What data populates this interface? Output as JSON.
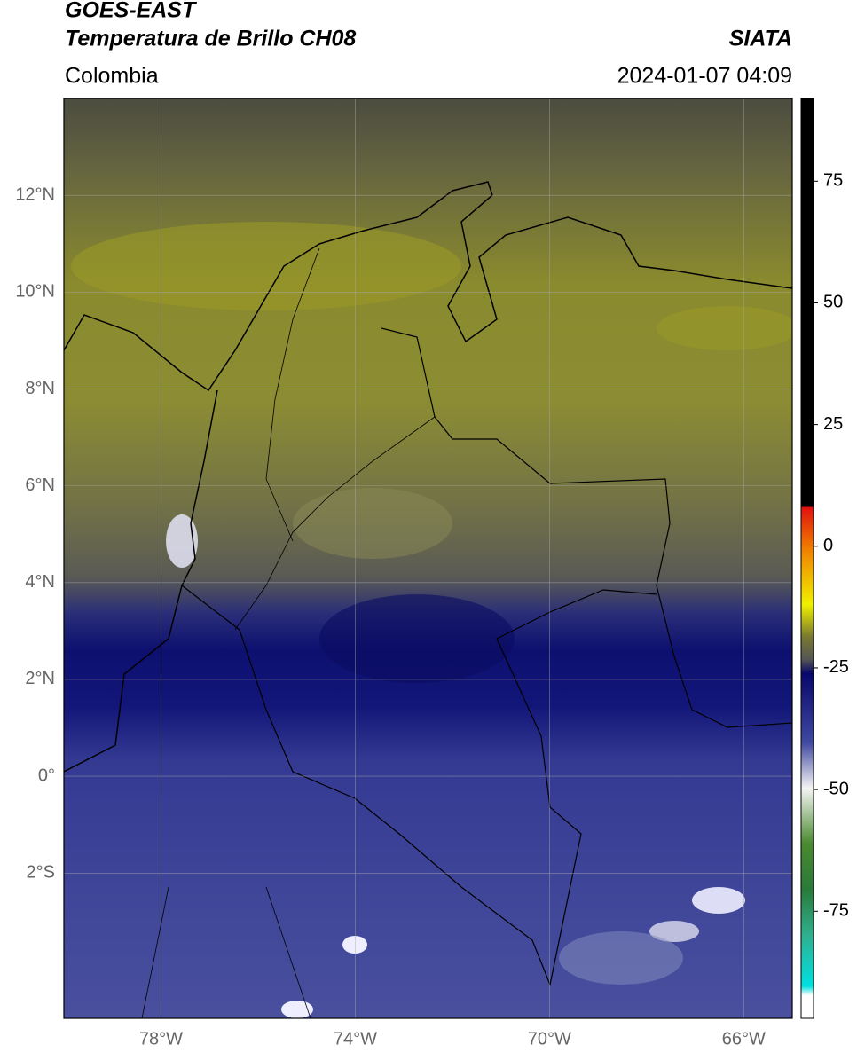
{
  "header": {
    "title": "GOES-EAST",
    "subtitle": "Temperatura de Brillo CH08",
    "source": "SIATA",
    "region": "Colombia",
    "datetime": "2024-01-07 04:09"
  },
  "map": {
    "lonlim": [
      -80,
      -65
    ],
    "latlim": [
      -5,
      14
    ],
    "lon_ticks": [
      {
        "value": -78,
        "label": "78°W"
      },
      {
        "value": -74,
        "label": "74°W"
      },
      {
        "value": -70,
        "label": "70°W"
      },
      {
        "value": -66,
        "label": "66°W"
      }
    ],
    "lat_ticks": [
      {
        "value": 12,
        "label": "12°N"
      },
      {
        "value": 10,
        "label": "10°N"
      },
      {
        "value": 8,
        "label": "8°N"
      },
      {
        "value": 6,
        "label": "6°N"
      },
      {
        "value": 4,
        "label": "4°N"
      },
      {
        "value": 2,
        "label": "2°N"
      },
      {
        "value": 0,
        "label": "0°"
      },
      {
        "value": -2,
        "label": "2°S"
      }
    ]
  },
  "colorbar": {
    "lim": [
      -97,
      92
    ],
    "ticks": [
      75,
      50,
      25,
      0,
      -25,
      -50,
      -75
    ]
  }
}
